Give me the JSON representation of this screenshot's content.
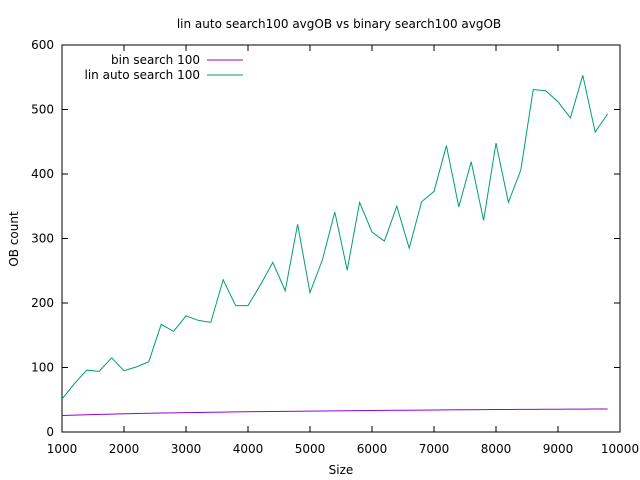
{
  "chart_data": {
    "type": "line",
    "title": "lin auto search100 avgOB vs binary search100 avgOB",
    "xlabel": "Size",
    "ylabel": "OB count",
    "xlim": [
      1000,
      10000
    ],
    "ylim": [
      0,
      600
    ],
    "xticks": [
      1000,
      2000,
      3000,
      4000,
      5000,
      6000,
      7000,
      8000,
      9000,
      10000
    ],
    "yticks": [
      0,
      100,
      200,
      300,
      400,
      500,
      600
    ],
    "grid": false,
    "legend_position": "top-left",
    "x": [
      1000,
      1200,
      1400,
      1600,
      1800,
      2000,
      2200,
      2400,
      2600,
      2800,
      3000,
      3200,
      3400,
      3600,
      3800,
      4000,
      4200,
      4400,
      4600,
      4800,
      5000,
      5200,
      5400,
      5600,
      5800,
      6000,
      6200,
      6400,
      6600,
      6800,
      7000,
      7200,
      7400,
      7600,
      7800,
      8000,
      8200,
      8400,
      8600,
      8800,
      9000,
      9200,
      9400,
      9600,
      9800
    ],
    "series": [
      {
        "name": "bin search 100",
        "color": "#9400d3",
        "values": [
          25.5,
          26.2,
          26.8,
          27.3,
          27.8,
          28.2,
          28.6,
          29.0,
          29.4,
          29.7,
          30.0,
          30.3,
          30.6,
          30.9,
          31.2,
          31.4,
          31.6,
          31.8,
          32.0,
          32.2,
          32.4,
          32.6,
          32.8,
          33.0,
          33.2,
          33.3,
          33.5,
          33.7,
          33.8,
          34.0,
          34.1,
          34.3,
          34.4,
          34.5,
          34.7,
          34.8,
          34.9,
          35.0,
          35.1,
          35.2,
          35.3,
          35.4,
          35.5,
          35.6,
          35.7
        ]
      },
      {
        "name": "lin auto search 100",
        "color": "#009e73",
        "values": [
          51,
          75,
          96,
          94,
          115,
          95,
          101,
          109,
          167,
          156,
          180,
          173,
          170,
          236,
          196,
          196,
          228,
          263,
          219,
          322,
          216,
          267,
          341,
          251,
          356,
          310,
          296,
          350,
          285,
          357,
          373,
          444,
          349,
          419,
          328,
          448,
          356,
          406,
          531,
          529,
          512,
          487,
          553,
          465,
          493
        ]
      }
    ]
  }
}
